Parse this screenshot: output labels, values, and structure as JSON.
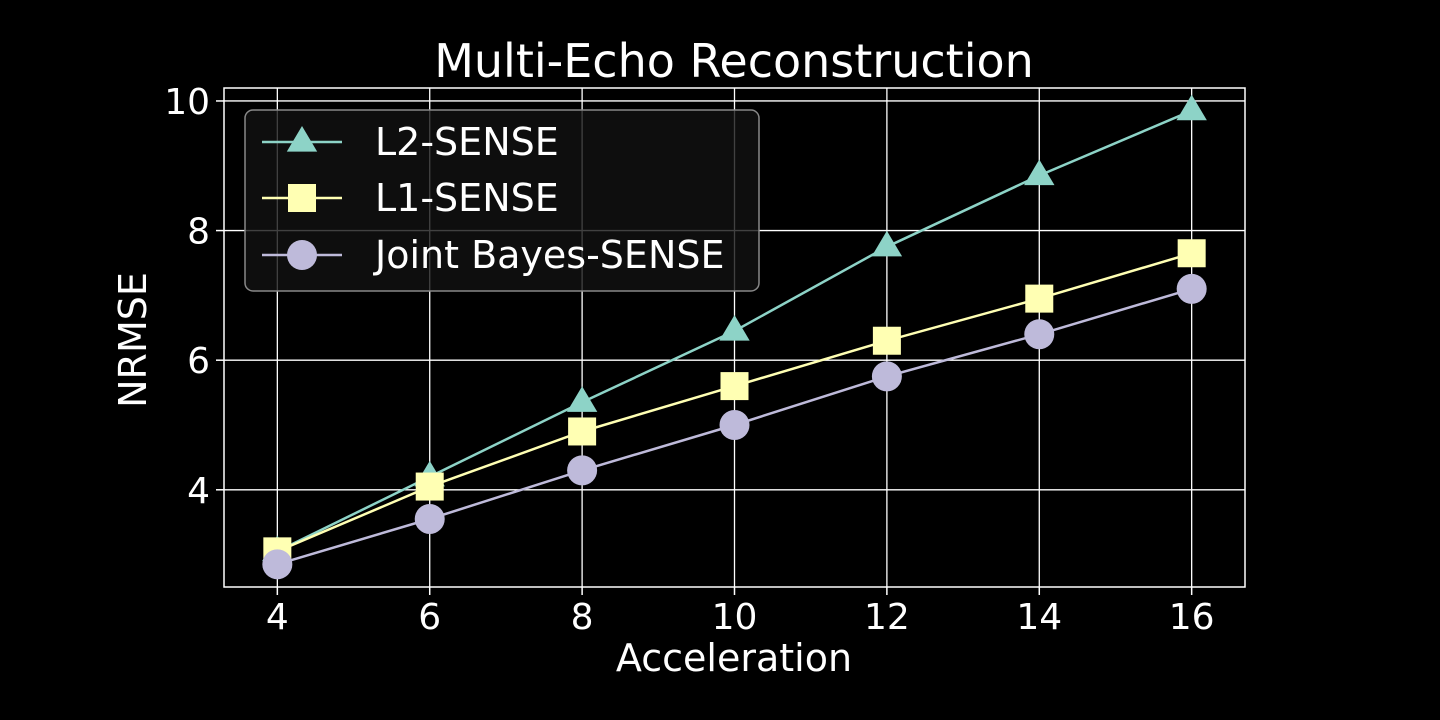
{
  "chart_data": {
    "type": "line",
    "title": "Multi-Echo Reconstruction",
    "xlabel": "Acceleration",
    "ylabel": "NRMSE",
    "x": [
      4,
      6,
      8,
      10,
      12,
      14,
      16
    ],
    "xticks": [
      "4",
      "6",
      "8",
      "10",
      "12",
      "14",
      "16"
    ],
    "yticks": [
      "4",
      "6",
      "8",
      "10"
    ],
    "xlim": [
      3.3,
      16.7
    ],
    "ylim": [
      2.5,
      10.2
    ],
    "grid": true,
    "legend_position": "top-left",
    "background": "#000000",
    "series": [
      {
        "name": "L2-SENSE",
        "marker": "triangle",
        "color": "#8dd3c7",
        "values": [
          3.05,
          4.2,
          5.35,
          6.45,
          7.75,
          8.85,
          9.85
        ]
      },
      {
        "name": "L1-SENSE",
        "marker": "square",
        "color": "#ffffb3",
        "values": [
          3.05,
          4.05,
          4.9,
          5.6,
          6.3,
          6.95,
          7.65
        ]
      },
      {
        "name": "Joint Bayes-SENSE",
        "marker": "circle",
        "color": "#bebada",
        "values": [
          2.85,
          3.55,
          4.3,
          5.0,
          5.75,
          6.4,
          7.1
        ]
      }
    ]
  }
}
